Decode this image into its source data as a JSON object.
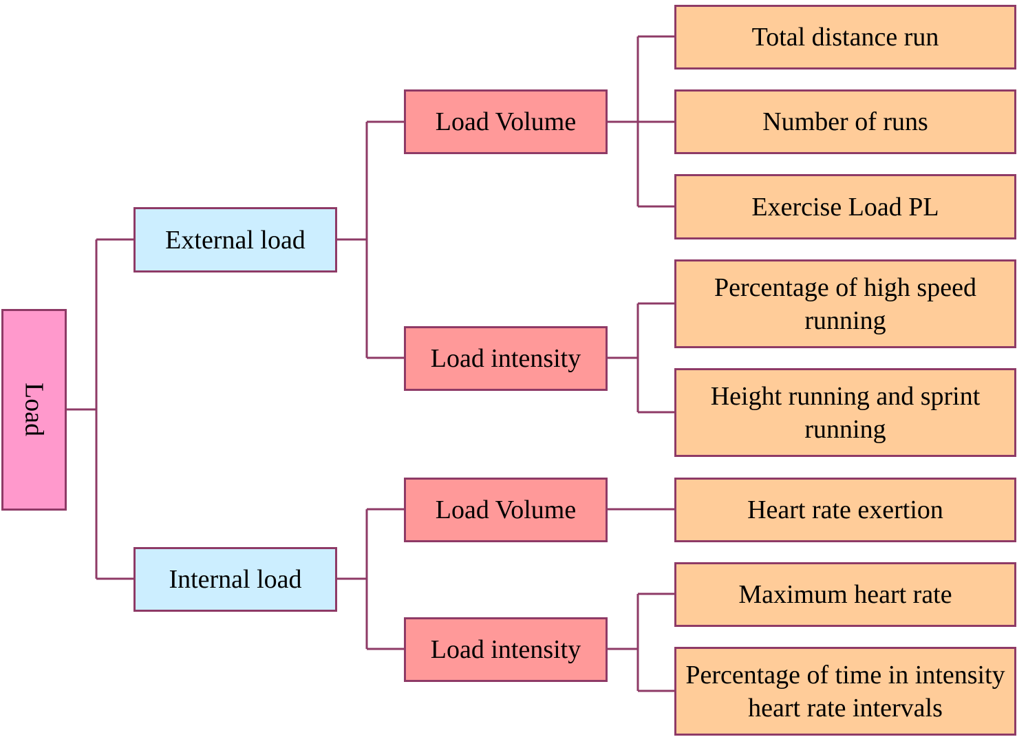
{
  "colors": {
    "root": "#ff99cc",
    "level1": "#cceeff",
    "level2": "#ff9999",
    "leaf": "#ffcc99",
    "connector": "#8e3a66"
  },
  "root": {
    "label": "Load"
  },
  "external": {
    "label": "External load",
    "volume": {
      "label": "Load Volume",
      "items": [
        "Total distance run",
        "Number of runs",
        "Exercise Load PL"
      ]
    },
    "intensity": {
      "label": "Load intensity",
      "items": [
        "Percentage of high speed running",
        "Height running and sprint running"
      ]
    }
  },
  "internal": {
    "label": "Internal load",
    "volume": {
      "label": "Load Volume",
      "items": [
        "Heart rate exertion"
      ]
    },
    "intensity": {
      "label": "Load intensity",
      "items": [
        "Maximum heart rate",
        "Percentage of time in intensity heart rate intervals"
      ]
    }
  }
}
